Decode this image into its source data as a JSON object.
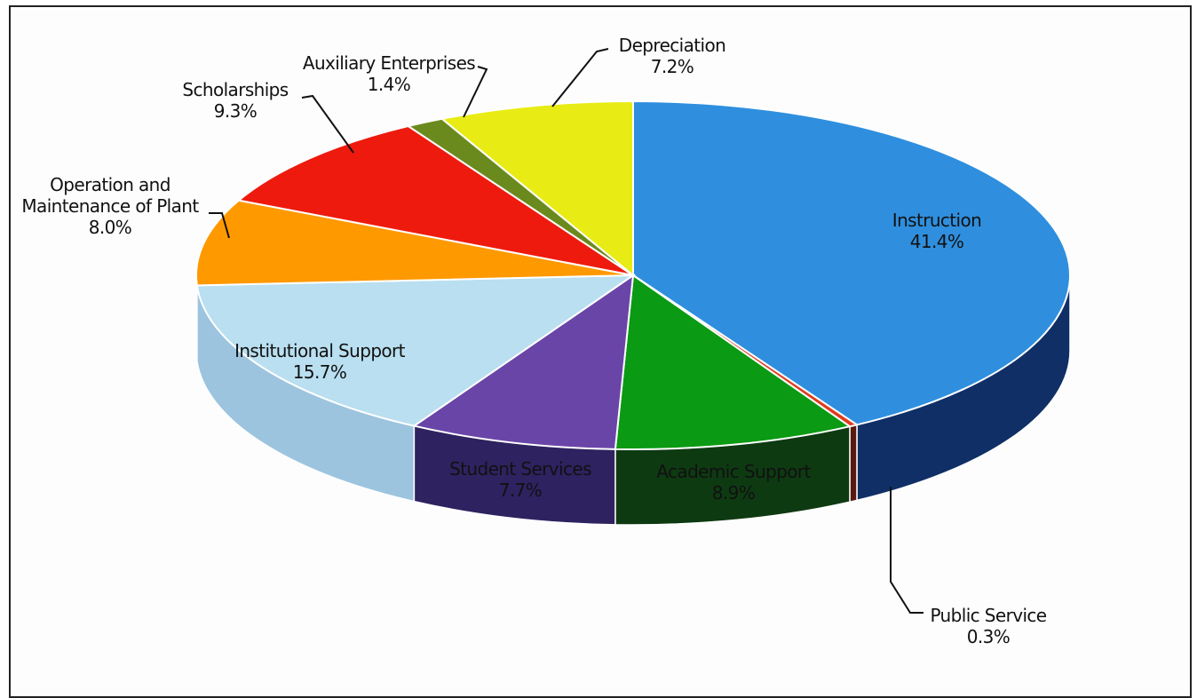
{
  "chart_data": {
    "type": "pie",
    "style": "3d",
    "slices": [
      {
        "label": "Instruction",
        "value": 41.4,
        "value_label": "41.4%",
        "color": "#2f8fde",
        "side_color": "#0f2f66"
      },
      {
        "label": "Public Service",
        "value": 0.3,
        "value_label": "0.3%",
        "color": "#e03a1e",
        "side_color": "#5a1a10"
      },
      {
        "label": "Academic Support",
        "value": 8.9,
        "value_label": "8.9%",
        "color": "#0a9a13",
        "side_color": "#0e3a12"
      },
      {
        "label": "Student Services",
        "value": 7.7,
        "value_label": "7.7%",
        "color": "#6a45a8",
        "side_color": "#2f2260"
      },
      {
        "label": "Institutional Support",
        "value": 15.7,
        "value_label": "15.7%",
        "color": "#b9dff0",
        "side_color": "#9cc4de"
      },
      {
        "label": "Operation and Maintenance of Plant",
        "label_lines": [
          "Operation and",
          "Maintenance of Plant"
        ],
        "value": 8.0,
        "value_label": "8.0%",
        "color": "#ff9900",
        "side_color": "#a85c00"
      },
      {
        "label": "Scholarships",
        "value": 9.3,
        "value_label": "9.3%",
        "color": "#ee1a0e",
        "side_color": "#8a0f08"
      },
      {
        "label": "Auxiliary Enterprises",
        "value": 1.4,
        "value_label": "1.4%",
        "color": "#6b8a1e",
        "side_color": "#3b4d10"
      },
      {
        "label": "Depreciation",
        "value": 7.2,
        "value_label": "7.2%",
        "color": "#e8ec14",
        "side_color": "#8a8c0a"
      }
    ]
  }
}
